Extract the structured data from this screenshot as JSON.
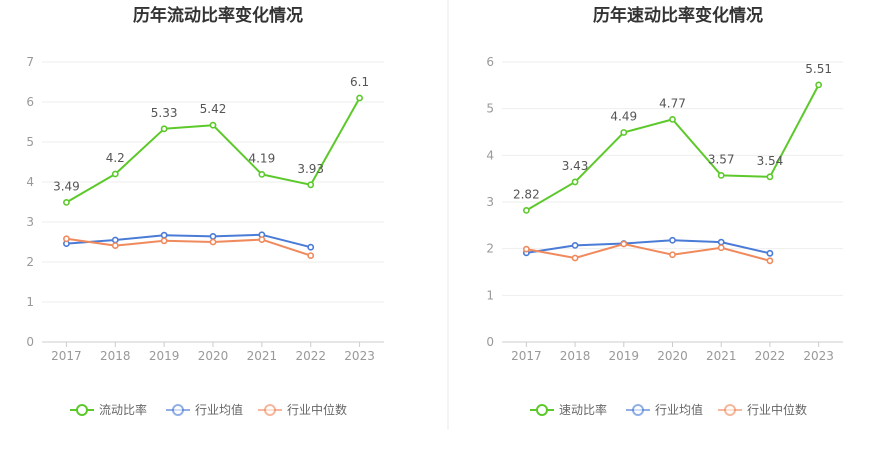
{
  "colors": {
    "green": "#5cc92a",
    "blue": "#4a7bd6",
    "orange": "#f08a5d",
    "axis": "#cccccc",
    "grid": "#eeeeee",
    "divider": "#e8e8e8"
  },
  "chart_data": [
    {
      "type": "line",
      "title": "历年流动比率变化情况",
      "categories": [
        "2017",
        "2018",
        "2019",
        "2020",
        "2021",
        "2022",
        "2023"
      ],
      "ylim": [
        0,
        7
      ],
      "yticks": [
        "0",
        "1",
        "2",
        "3",
        "4",
        "5",
        "6",
        "7"
      ],
      "grid": true,
      "legend_position": "bottom",
      "series": [
        {
          "name": "流动比率",
          "color": "green",
          "values": [
            3.49,
            4.2,
            5.33,
            5.42,
            4.19,
            3.93,
            6.1
          ],
          "labels": [
            "3.49",
            "4.2",
            "5.33",
            "5.42",
            "4.19",
            "3.93",
            "6.1"
          ]
        },
        {
          "name": "行业均值",
          "color": "blue",
          "values": [
            2.46,
            2.55,
            2.67,
            2.64,
            2.68,
            2.37,
            null
          ]
        },
        {
          "name": "行业中位数",
          "color": "orange",
          "values": [
            2.58,
            2.41,
            2.53,
            2.5,
            2.56,
            2.16,
            null
          ]
        }
      ]
    },
    {
      "type": "line",
      "title": "历年速动比率变化情况",
      "categories": [
        "2017",
        "2018",
        "2019",
        "2020",
        "2021",
        "2022",
        "2023"
      ],
      "ylim": [
        0,
        6
      ],
      "yticks": [
        "0",
        "1",
        "2",
        "3",
        "4",
        "5",
        "6"
      ],
      "grid": true,
      "legend_position": "bottom",
      "series": [
        {
          "name": "速动比率",
          "color": "green",
          "values": [
            2.82,
            3.43,
            4.49,
            4.77,
            3.57,
            3.54,
            5.51
          ],
          "labels": [
            "2.82",
            "3.43",
            "4.49",
            "4.77",
            "3.57",
            "3.54",
            "5.51"
          ]
        },
        {
          "name": "行业均值",
          "color": "blue",
          "values": [
            1.91,
            2.07,
            2.11,
            2.18,
            2.14,
            1.9,
            null
          ]
        },
        {
          "name": "行业中位数",
          "color": "orange",
          "values": [
            1.99,
            1.8,
            2.1,
            1.87,
            2.02,
            1.74,
            null
          ]
        }
      ]
    }
  ]
}
